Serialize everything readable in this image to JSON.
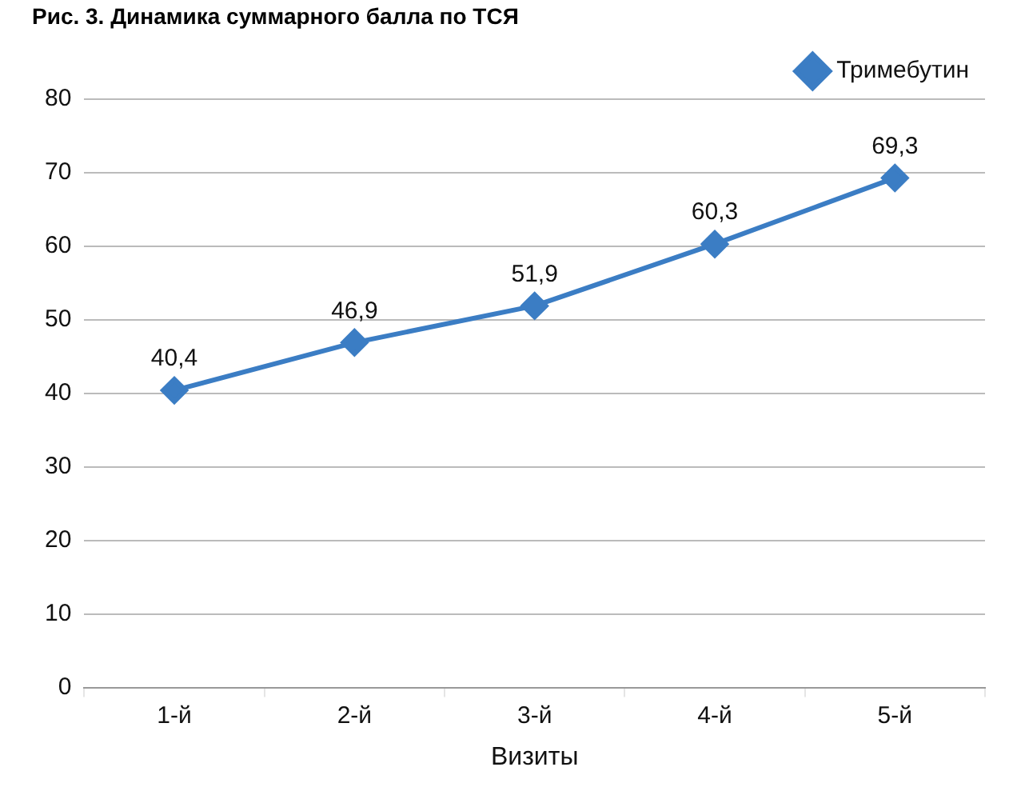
{
  "chart_data": {
    "type": "line",
    "title": "Рис. 3. Динамика суммарного балла по ТСЯ",
    "xlabel": "Визиты",
    "categories": [
      "1-й",
      "2-й",
      "3-й",
      "4-й",
      "5-й"
    ],
    "series": [
      {
        "name": "Тримебутин",
        "color": "#3b7dc4",
        "values": [
          40.4,
          46.9,
          51.9,
          60.3,
          69.3
        ],
        "value_labels": [
          "40,4",
          "46,9",
          "51,9",
          "60,3",
          "69,3"
        ]
      }
    ],
    "ylim": [
      0,
      80
    ],
    "yticks": [
      0,
      10,
      20,
      30,
      40,
      50,
      60,
      70,
      80
    ],
    "grid": "y",
    "legend": "top right",
    "marker": "diamond"
  }
}
